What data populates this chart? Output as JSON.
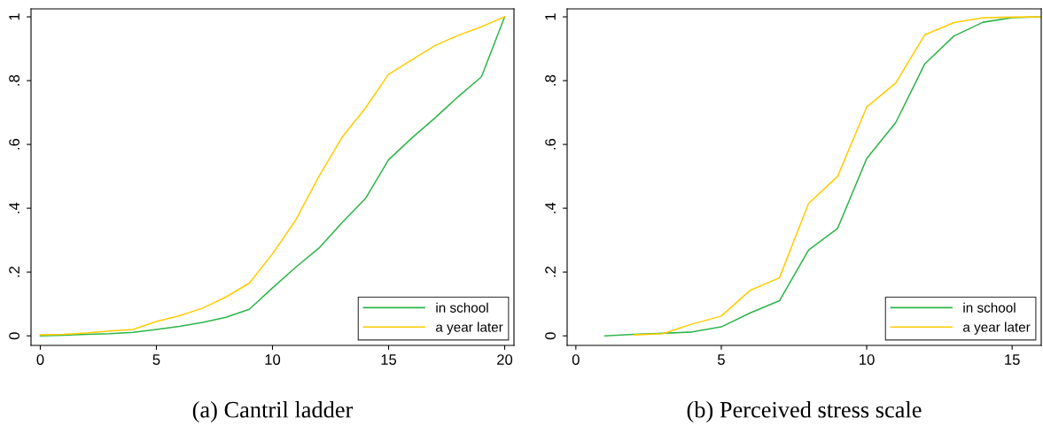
{
  "chart_data": [
    {
      "type": "line",
      "annotations": [
        "(a) Cantril ladder"
      ],
      "x": [
        0,
        1,
        2,
        3,
        4,
        5,
        6,
        7,
        8,
        9,
        10,
        11,
        12,
        13,
        14,
        15,
        16,
        17,
        18,
        19,
        20
      ],
      "series": [
        {
          "name": "in school",
          "color": "#2eb54a",
          "values": [
            0,
            0.002,
            0.005,
            0.007,
            0.011,
            0.02,
            0.03,
            0.042,
            0.058,
            0.083,
            0.15,
            0.215,
            0.275,
            0.355,
            0.43,
            0.552,
            0.62,
            0.683,
            0.75,
            0.812,
            1
          ]
        },
        {
          "name": "a year later",
          "color": "#ffcc00",
          "values": [
            0.003,
            0.005,
            0.009,
            0.015,
            0.02,
            0.045,
            0.063,
            0.087,
            0.122,
            0.165,
            0.257,
            0.363,
            0.5,
            0.623,
            0.714,
            0.82,
            0.865,
            0.91,
            0.942,
            0.969,
            1
          ]
        }
      ],
      "xlim": [
        -0.4,
        20.4
      ],
      "ylim": [
        -0.03,
        1.025
      ],
      "xticks": [
        0,
        5,
        10,
        15,
        20
      ],
      "yticks": [
        0,
        {
          "value": 0.2,
          "label": ".2"
        },
        {
          "value": 0.4,
          "label": ".4"
        },
        {
          "value": 0.6,
          "label": ".6"
        },
        {
          "value": 0.8,
          "label": ".8"
        },
        1
      ],
      "legend": "bottom right",
      "grid": false
    },
    {
      "type": "line",
      "annotations": [
        "(b) Perceived stress scale"
      ],
      "series": [
        {
          "name": "in school",
          "color": "#2eb54a",
          "x": [
            1,
            2,
            3,
            4,
            5,
            6,
            7,
            8,
            9,
            10,
            11,
            12,
            13,
            14,
            15,
            16
          ],
          "values": [
            0,
            0.005,
            0.008,
            0.012,
            0.028,
            0.072,
            0.11,
            0.269,
            0.337,
            0.556,
            0.669,
            0.853,
            0.94,
            0.983,
            0.997,
            1
          ]
        },
        {
          "name": "a year later",
          "color": "#ffcc00",
          "x": [
            2,
            3,
            4,
            5,
            6,
            7,
            8,
            9,
            10,
            11,
            12,
            13,
            14,
            15,
            16
          ],
          "values": [
            0.003,
            0.007,
            0.037,
            0.062,
            0.143,
            0.182,
            0.415,
            0.5,
            0.717,
            0.793,
            0.944,
            0.982,
            0.997,
            0.999,
            1
          ]
        }
      ],
      "xlim": [
        -0.3,
        16
      ],
      "ylim": [
        -0.03,
        1.025
      ],
      "xticks": [
        0,
        5,
        10,
        15
      ],
      "yticks": [
        0,
        {
          "value": 0.2,
          "label": ".2"
        },
        {
          "value": 0.4,
          "label": ".4"
        },
        {
          "value": 0.6,
          "label": ".6"
        },
        {
          "value": 0.8,
          "label": ".8"
        },
        1
      ],
      "legend": "bottom right",
      "grid": false
    }
  ]
}
